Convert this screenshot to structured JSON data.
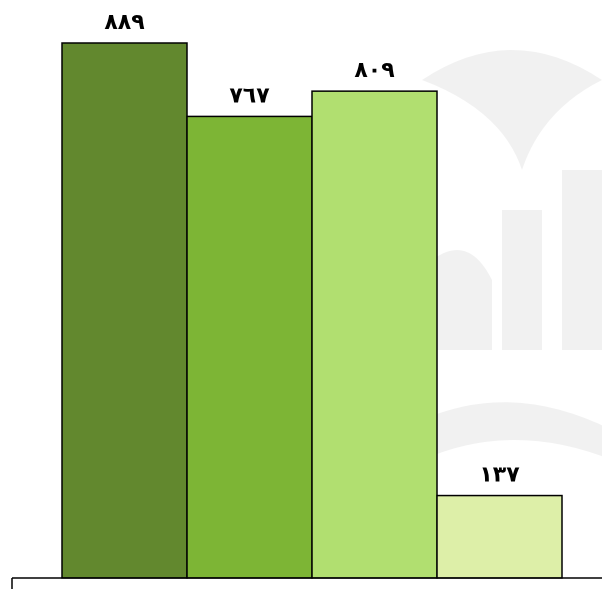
{
  "chart_data": {
    "type": "bar",
    "categories": [
      "",
      "",
      "",
      ""
    ],
    "values": [
      889,
      767,
      809,
      137
    ],
    "value_labels": [
      "٨٨٩",
      "٧٦٧",
      "٨٠٩",
      "١٣٧"
    ],
    "colors": [
      "#62882E",
      "#7DB535",
      "#B1DF70",
      "#DDEFA8"
    ],
    "title": "",
    "xlabel": "",
    "ylabel": "",
    "ylim": [
      0,
      1000
    ],
    "grid": false,
    "legend": "none"
  }
}
